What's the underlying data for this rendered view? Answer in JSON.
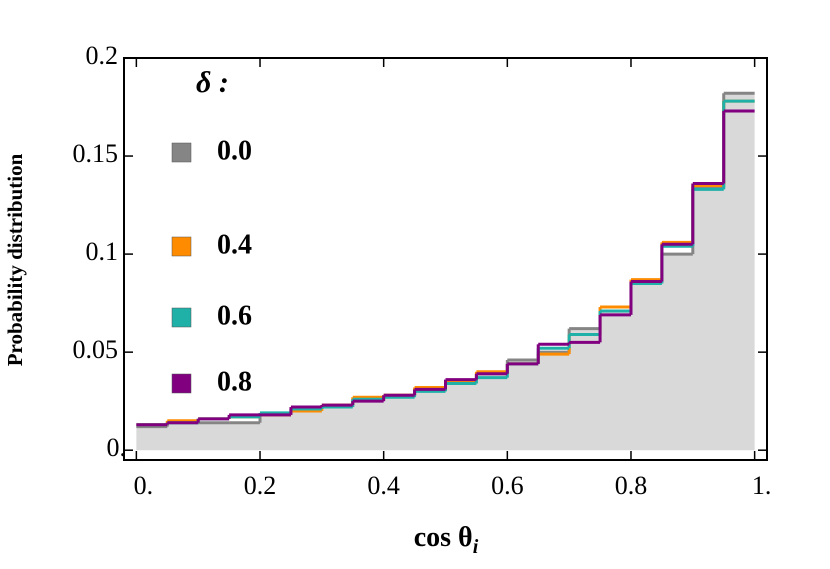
{
  "chart_data": {
    "type": "histogram",
    "xlabel": "cos θ",
    "xlabel_subscript": "i",
    "ylabel": "Probability distribution",
    "legend_title": "δ :",
    "legend": "top-left",
    "fill_color": "#d9d9d9",
    "bins": [
      0,
      0.05,
      0.1,
      0.15,
      0.2,
      0.25,
      0.3,
      0.35,
      0.4,
      0.45,
      0.5,
      0.55,
      0.6,
      0.65,
      0.7,
      0.75,
      0.8,
      0.85,
      0.9,
      0.95,
      1
    ],
    "series": [
      {
        "name": "0.0",
        "color": "#858585",
        "values": [
          0.012,
          0.014,
          0.014,
          0.014,
          0.018,
          0.021,
          0.023,
          0.026,
          0.028,
          0.031,
          0.035,
          0.039,
          0.046,
          0.05,
          0.062,
          0.071,
          0.086,
          0.1,
          0.134,
          0.182
        ]
      },
      {
        "name": "0.4",
        "color": "#ff8c00",
        "values": [
          0.013,
          0.015,
          0.016,
          0.017,
          0.018,
          0.02,
          0.023,
          0.027,
          0.028,
          0.032,
          0.035,
          0.04,
          0.044,
          0.049,
          0.059,
          0.073,
          0.087,
          0.106,
          0.135,
          0.178
        ]
      },
      {
        "name": "0.6",
        "color": "#1fb0a8",
        "values": [
          0.013,
          0.014,
          0.016,
          0.017,
          0.019,
          0.021,
          0.022,
          0.026,
          0.027,
          0.03,
          0.034,
          0.037,
          0.044,
          0.052,
          0.059,
          0.071,
          0.085,
          0.104,
          0.133,
          0.178
        ]
      },
      {
        "name": "0.8",
        "color": "#800080",
        "values": [
          0.013,
          0.014,
          0.016,
          0.018,
          0.018,
          0.022,
          0.023,
          0.025,
          0.028,
          0.031,
          0.036,
          0.039,
          0.044,
          0.054,
          0.055,
          0.069,
          0.086,
          0.105,
          0.136,
          0.173
        ]
      }
    ],
    "xlim": [
      -0.02,
      1.02
    ],
    "ylim": [
      -0.005,
      0.2
    ],
    "xticks": [
      {
        "value": 0,
        "label": "0."
      },
      0.2,
      0.4,
      0.6,
      0.8,
      {
        "value": 1,
        "label": "1."
      }
    ],
    "yticks": [
      {
        "value": 0,
        "label": "0."
      },
      0.05,
      0.1,
      0.15,
      0.2
    ]
  }
}
